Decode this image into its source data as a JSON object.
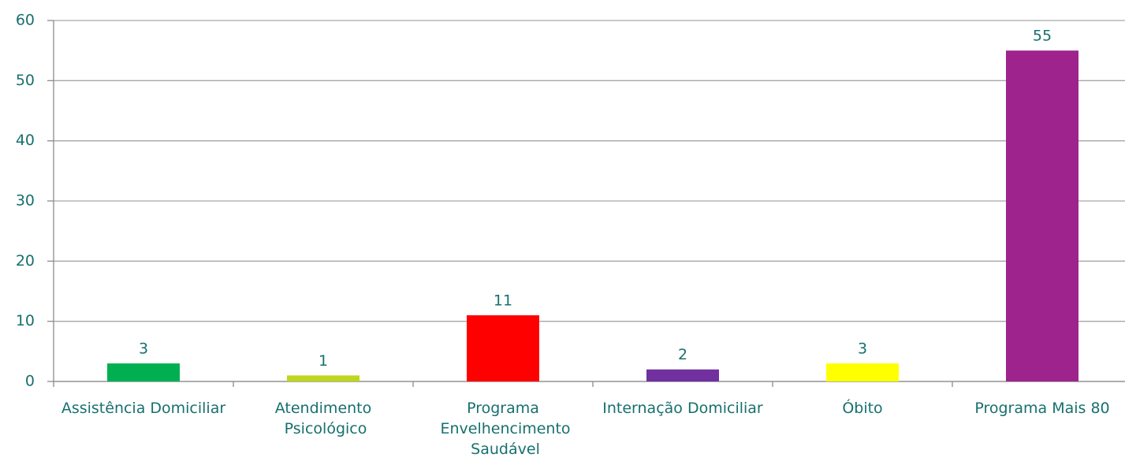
{
  "chart_data": {
    "type": "bar",
    "categories": [
      "Assistência Domiciliar",
      "Atendimento Psicológico",
      "Programa Envelhencimento Saudável",
      "Internação Domiciliar",
      "Óbito",
      "Programa Mais 80"
    ],
    "values": [
      3,
      1,
      11,
      2,
      3,
      55
    ],
    "colors": [
      "#00b050",
      "#bfd61e",
      "#ff0000",
      "#7030a0",
      "#ffff00",
      "#9e238c"
    ],
    "ylim": [
      0,
      60
    ],
    "yticks": [
      0,
      10,
      20,
      30,
      40,
      50,
      60
    ],
    "grid": true
  }
}
